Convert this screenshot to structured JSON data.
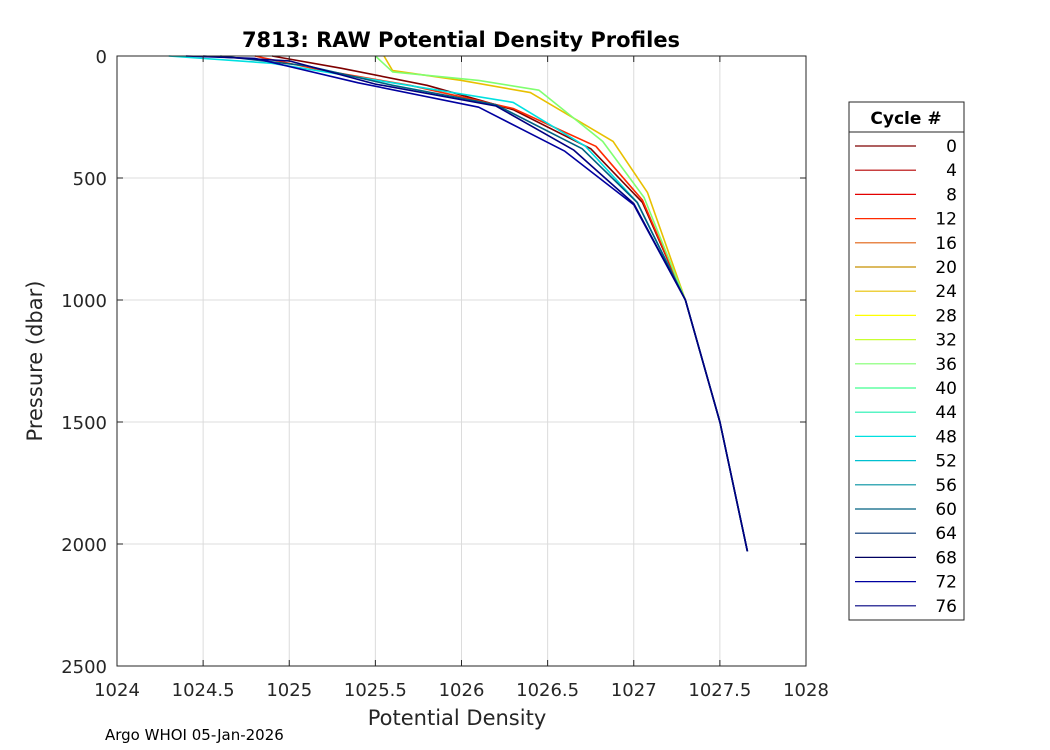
{
  "chart_data": {
    "type": "line",
    "title": "7813: RAW Potential Density Profiles",
    "xlabel": "Potential Density",
    "ylabel": "Pressure (dbar)",
    "xlim": [
      1024,
      1028
    ],
    "ylim": [
      0,
      2500
    ],
    "y_reversed": true,
    "grid": true,
    "x_ticks": [
      1024,
      1024.5,
      1025,
      1025.5,
      1026,
      1026.5,
      1027,
      1027.5,
      1028
    ],
    "x_tick_labels": [
      "1024",
      "1024.5",
      "1025",
      "1025.5",
      "1026",
      "1026.5",
      "1027",
      "1027.5",
      "1028"
    ],
    "y_ticks": [
      0,
      500,
      1000,
      1500,
      2000,
      2500
    ],
    "y_tick_labels": [
      "0",
      "500",
      "1000",
      "1500",
      "2000",
      "2500"
    ],
    "legend": {
      "title": "Cycle #",
      "placement": "right-outside",
      "entries": [
        {
          "label": "0",
          "color": "#7f0000"
        },
        {
          "label": "4",
          "color": "#b50000"
        },
        {
          "label": "8",
          "color": "#e30000"
        },
        {
          "label": "12",
          "color": "#ff2a00"
        },
        {
          "label": "16",
          "color": "#e06010"
        },
        {
          "label": "20",
          "color": "#c89000"
        },
        {
          "label": "24",
          "color": "#e8c000"
        },
        {
          "label": "28",
          "color": "#ffff00"
        },
        {
          "label": "32",
          "color": "#c8ff30"
        },
        {
          "label": "36",
          "color": "#80ff70"
        },
        {
          "label": "40",
          "color": "#40ff90"
        },
        {
          "label": "44",
          "color": "#20f0b0"
        },
        {
          "label": "48",
          "color": "#00e0e0"
        },
        {
          "label": "52",
          "color": "#00c0d0"
        },
        {
          "label": "56",
          "color": "#0090a0"
        },
        {
          "label": "60",
          "color": "#006080"
        },
        {
          "label": "64",
          "color": "#003070"
        },
        {
          "label": "68",
          "color": "#000060"
        },
        {
          "label": "72",
          "color": "#0000a0"
        },
        {
          "label": "76",
          "color": "#000080"
        }
      ]
    },
    "series": [
      {
        "name": "0",
        "color": "#7f0000",
        "x": [
          1024.9,
          1025.3,
          1025.8,
          1026.3,
          1026.75,
          1027.05,
          1027.3,
          1027.5,
          1027.66
        ],
        "y": [
          0,
          50,
          120,
          220,
          380,
          600,
          1000,
          1500,
          2030
        ]
      },
      {
        "name": "12",
        "color": "#ff2a00",
        "x": [
          1024.8,
          1025.2,
          1025.7,
          1026.3,
          1026.78,
          1027.05,
          1027.3,
          1027.5,
          1027.66
        ],
        "y": [
          0,
          60,
          120,
          215,
          370,
          590,
          1000,
          1500,
          2030
        ]
      },
      {
        "name": "24",
        "color": "#e8c000",
        "x": [
          1025.55,
          1025.6,
          1026.0,
          1026.4,
          1026.88,
          1027.08,
          1027.3,
          1027.5,
          1027.66
        ],
        "y": [
          0,
          60,
          100,
          150,
          350,
          560,
          1000,
          1500,
          2030
        ]
      },
      {
        "name": "36",
        "color": "#80ff70",
        "x": [
          1025.5,
          1025.6,
          1026.1,
          1026.45,
          1026.82,
          1027.06,
          1027.3,
          1027.5,
          1027.66
        ],
        "y": [
          0,
          65,
          100,
          140,
          350,
          580,
          1000,
          1500,
          2030
        ]
      },
      {
        "name": "48",
        "color": "#00e0e0",
        "x": [
          1024.3,
          1024.9,
          1025.6,
          1026.3,
          1026.72,
          1027.02,
          1027.3,
          1027.5,
          1027.66
        ],
        "y": [
          0,
          30,
          110,
          190,
          370,
          600,
          1000,
          1500,
          2030
        ]
      },
      {
        "name": "60",
        "color": "#006080",
        "x": [
          1024.6,
          1025.1,
          1025.6,
          1026.2,
          1026.7,
          1027.02,
          1027.3,
          1027.5,
          1027.66
        ],
        "y": [
          0,
          40,
          120,
          200,
          380,
          600,
          1000,
          1500,
          2030
        ]
      },
      {
        "name": "72",
        "color": "#0000a0",
        "x": [
          1024.4,
          1024.8,
          1025.4,
          1026.1,
          1026.6,
          1027.0,
          1027.3,
          1027.5,
          1027.66
        ],
        "y": [
          0,
          10,
          110,
          210,
          390,
          610,
          1000,
          1500,
          2030
        ]
      },
      {
        "name": "76",
        "color": "#000080",
        "x": [
          1024.5,
          1025.0,
          1025.5,
          1026.2,
          1026.65,
          1027.0,
          1027.3,
          1027.5,
          1027.66
        ],
        "y": [
          0,
          20,
          115,
          205,
          385,
          605,
          1000,
          1500,
          2030
        ]
      }
    ]
  },
  "footer": "Argo WHOI 05-Jan-2026"
}
